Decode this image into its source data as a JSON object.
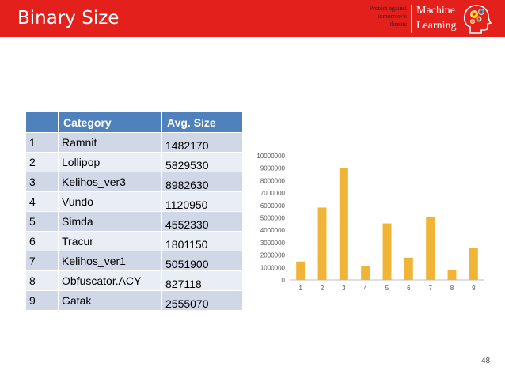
{
  "header": {
    "title": "Binary Size",
    "tagline": [
      "Protect against",
      "tomorrow’s",
      "threats"
    ],
    "logo_lines": [
      "Machine",
      "Learning"
    ],
    "background": "#e3201b"
  },
  "table": {
    "headers": [
      "",
      "Category",
      "Avg. Size"
    ],
    "rows": [
      {
        "index": "1",
        "category": "Ramnit",
        "size": "1482170"
      },
      {
        "index": "2",
        "category": "Lollipop",
        "size": "5829530"
      },
      {
        "index": "3",
        "category": "Kelihos_ver3",
        "size": "8982630"
      },
      {
        "index": "4",
        "category": "Vundo",
        "size": "1120950"
      },
      {
        "index": "5",
        "category": "Simda",
        "size": "4552330"
      },
      {
        "index": "6",
        "category": "Tracur",
        "size": "1801150"
      },
      {
        "index": "7",
        "category": "Kelihos_ver1",
        "size": "5051900"
      },
      {
        "index": "8",
        "category": "Obfuscator.ACY",
        "size": "827118"
      },
      {
        "index": "9",
        "category": "Gatak",
        "size": "2555070"
      }
    ],
    "header_color": "#4f81bd",
    "row_color_odd": "#d0d8e8",
    "row_color_even": "#e9edf4"
  },
  "chart_data": {
    "type": "bar",
    "categories": [
      "1",
      "2",
      "3",
      "4",
      "5",
      "6",
      "7",
      "8",
      "9"
    ],
    "values": [
      1482170,
      5829530,
      8982630,
      1120950,
      4552330,
      1801150,
      5051900,
      827118,
      2555070
    ],
    "title": "",
    "xlabel": "",
    "ylabel": "",
    "ylim": [
      0,
      10000000
    ],
    "yticks": [
      "0",
      "1000000",
      "2000000",
      "3000000",
      "4000000",
      "5000000",
      "6000000",
      "7000000",
      "8000000",
      "9000000",
      "10000000"
    ],
    "grid": false,
    "legend": "none",
    "bar_color": "#f0b436"
  },
  "footer": {
    "page_number": "48"
  }
}
